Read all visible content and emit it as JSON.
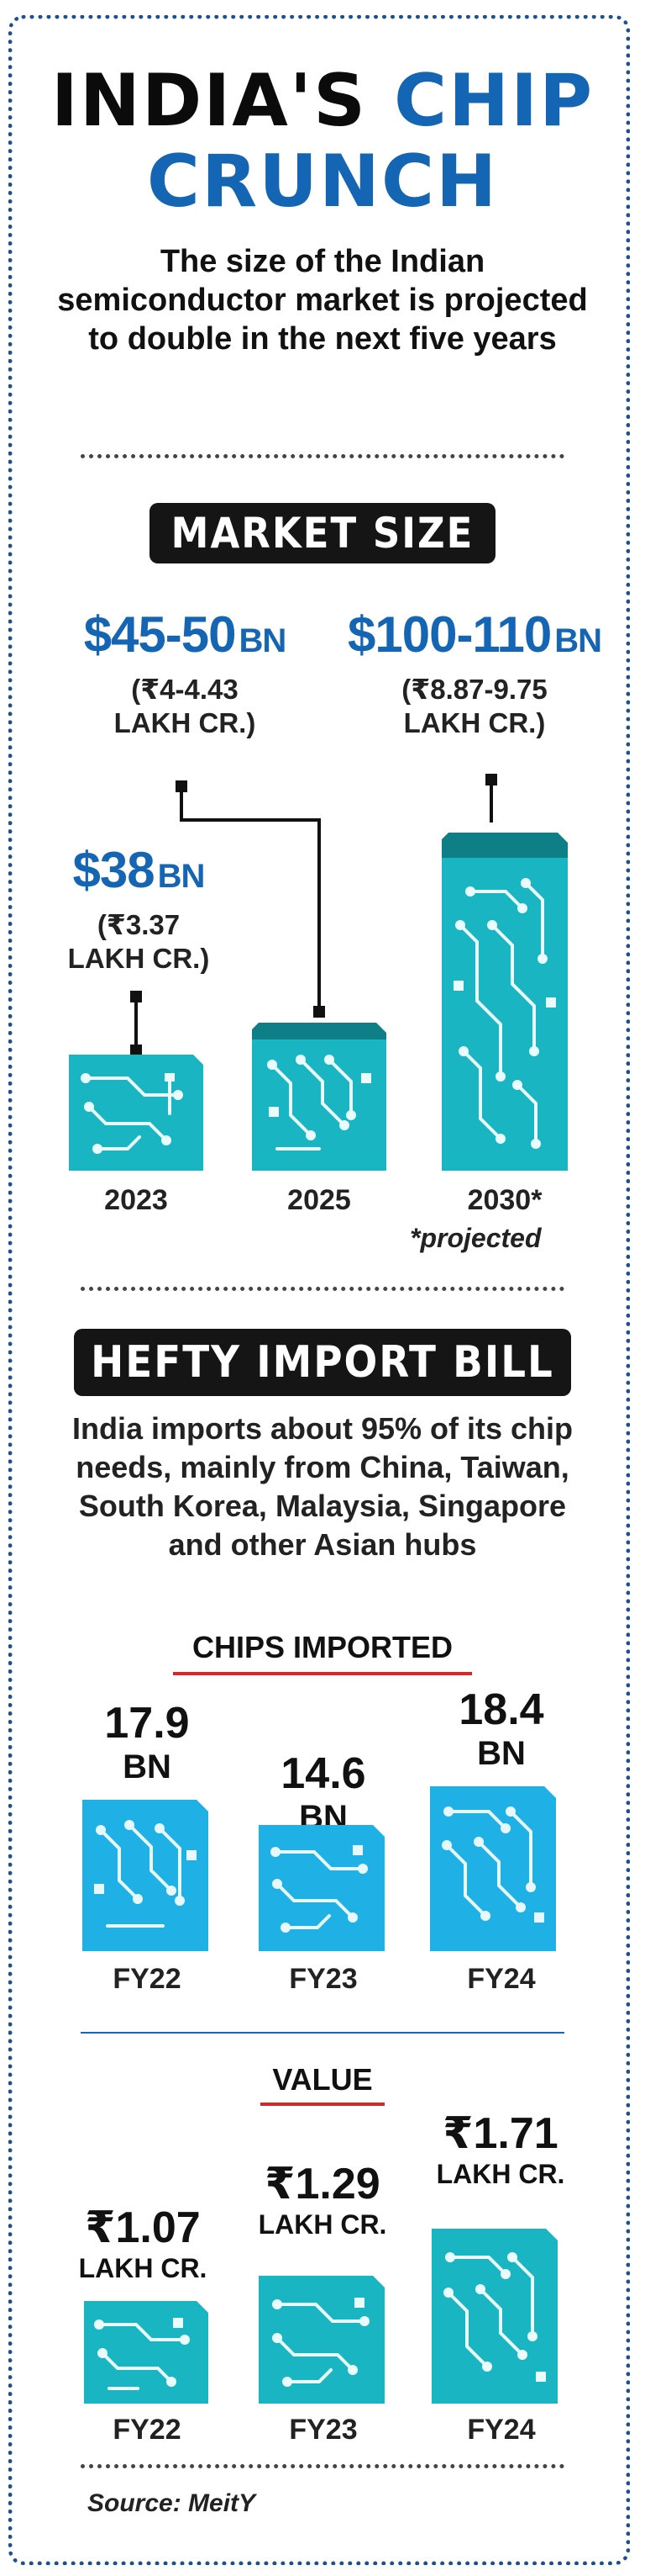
{
  "title": {
    "word1": "INDIA'S",
    "word2": "CHIP",
    "word3": "CRUNCH"
  },
  "subtitle": "The size of the Indian semiconductor market is projected to double in the next five years",
  "market_size": {
    "heading": "MARKET SIZE",
    "items": [
      {
        "year": "2023",
        "value": "$38",
        "unit": "BN",
        "rupee_line1": "(₹3.37",
        "rupee_line2": "LAKH CR.)"
      },
      {
        "year": "2025",
        "value": "$45-50",
        "unit": "BN",
        "rupee_line1": "(₹4-4.43",
        "rupee_line2": "LAKH CR.)"
      },
      {
        "year": "2030*",
        "value": "$100-110",
        "unit": "BN",
        "rupee_line1": "(₹8.87-9.75",
        "rupee_line2": "LAKH CR.)"
      }
    ],
    "footnote": "*projected"
  },
  "import_bill": {
    "heading": "HEFTY IMPORT BILL",
    "description": "India imports about 95% of its chip needs, mainly from China, Taiwan, South Korea, Malaysia, Singapore and other Asian hubs",
    "chips_heading": "CHIPS IMPORTED",
    "chips": [
      {
        "fy": "FY22",
        "value": "17.9",
        "unit": "BN"
      },
      {
        "fy": "FY23",
        "value": "14.6",
        "unit": "BN"
      },
      {
        "fy": "FY24",
        "value": "18.4",
        "unit": "BN"
      }
    ],
    "value_heading": "VALUE",
    "values": [
      {
        "fy": "FY22",
        "value": "₹1.07",
        "unit": "LAKH CR."
      },
      {
        "fy": "FY23",
        "value": "₹1.29",
        "unit": "LAKH CR."
      },
      {
        "fy": "FY24",
        "value": "₹1.71",
        "unit": "LAKH CR."
      }
    ]
  },
  "source": "Source: MeitY",
  "colors": {
    "accent_blue": "#1565b5",
    "chip_teal": "#19b5c2",
    "chip_top": "#0e7f86",
    "chip_light_blue": "#1fb0e6",
    "red": "#d3292a",
    "dark": "#151515"
  }
}
